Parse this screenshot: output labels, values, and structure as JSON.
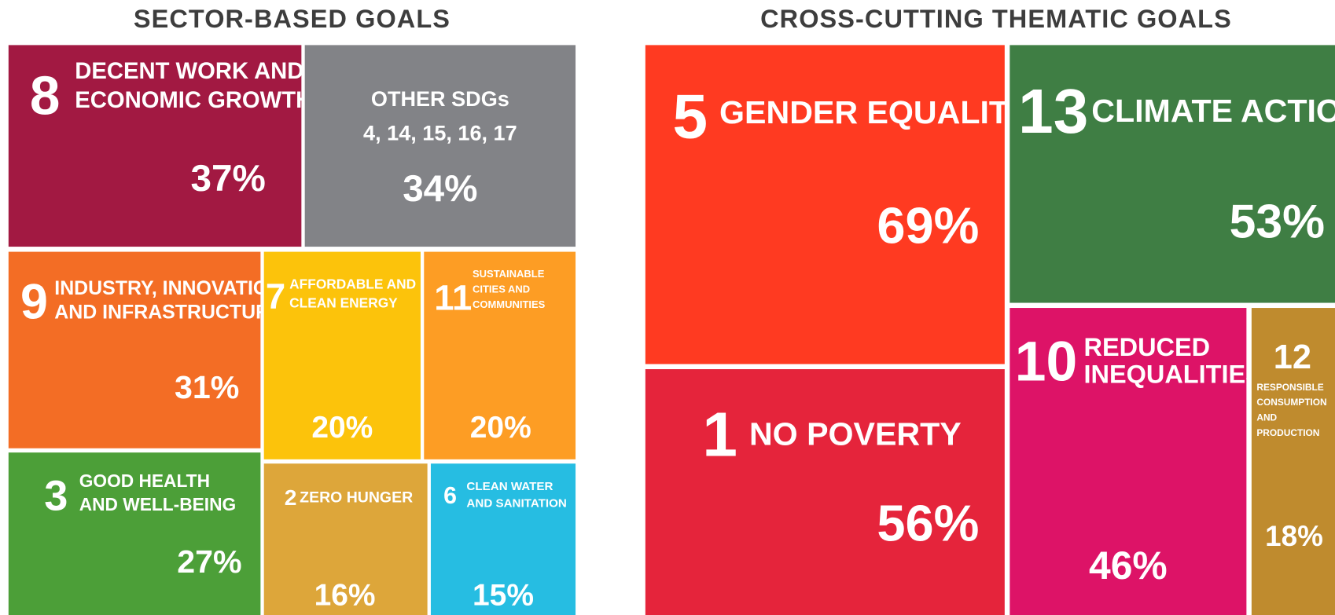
{
  "sections": [
    {
      "title": "SECTOR-BASED GOALS",
      "tiles": [
        {
          "number": "8",
          "name_lines": [
            "DECENT WORK AND",
            "ECONOMIC GROWTH"
          ],
          "percent": "37%"
        },
        {
          "name_lines": [
            "OTHER SDGs",
            "4, 14, 15, 16, 17"
          ],
          "percent": "34%"
        },
        {
          "number": "9",
          "name_lines": [
            "INDUSTRY, INNOVATION",
            "AND INFRASTRUCTURE"
          ],
          "percent": "31%"
        },
        {
          "number": "7",
          "name_lines": [
            "AFFORDABLE AND",
            "CLEAN ENERGY"
          ],
          "percent": "20%"
        },
        {
          "number": "11",
          "name_lines": [
            "SUSTAINABLE",
            "CITIES AND",
            "COMMUNITIES"
          ],
          "percent": "20%"
        },
        {
          "number": "3",
          "name_lines": [
            "GOOD HEALTH",
            "AND WELL-BEING"
          ],
          "percent": "27%"
        },
        {
          "number": "2",
          "name_lines": [
            "ZERO HUNGER"
          ],
          "percent": "16%"
        },
        {
          "number": "6",
          "name_lines": [
            "CLEAN WATER",
            "AND SANITATION"
          ],
          "percent": "15%"
        }
      ]
    },
    {
      "title": "CROSS-CUTTING THEMATIC GOALS",
      "tiles": [
        {
          "number": "5",
          "name_lines": [
            "GENDER EQUALITY"
          ],
          "percent": "69%"
        },
        {
          "number": "13",
          "name_lines": [
            "CLIMATE ACTION"
          ],
          "percent": "53%"
        },
        {
          "number": "1",
          "name_lines": [
            "NO POVERTY"
          ],
          "percent": "56%"
        },
        {
          "number": "10",
          "name_lines": [
            "REDUCED",
            "INEQUALITIES"
          ],
          "percent": "46%"
        },
        {
          "number": "12",
          "name_lines": [
            "RESPONSIBLE",
            "CONSUMPTION",
            "AND",
            "PRODUCTION"
          ],
          "percent": "18%"
        }
      ]
    }
  ]
}
